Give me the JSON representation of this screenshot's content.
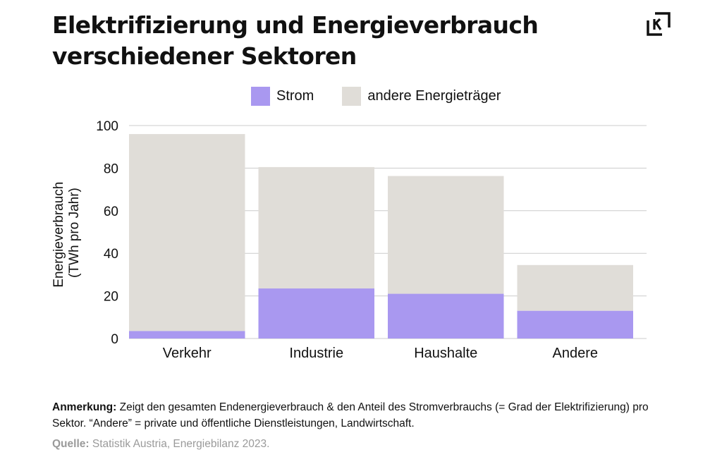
{
  "title": "Elektrifizierung und Energieverbrauch verschiedener Sektoren",
  "colors": {
    "strom": "#a998f0",
    "andere": "#e0ddd8",
    "grid": "#cccccc"
  },
  "chart_data": {
    "type": "bar",
    "stacked": true,
    "categories": [
      "Verkehr",
      "Industrie",
      "Haushalte",
      "Andere"
    ],
    "series": [
      {
        "name": "Strom",
        "values": [
          3.5,
          23.5,
          21,
          13
        ]
      },
      {
        "name": "andere Energieträger",
        "values": [
          92.5,
          57,
          55.3,
          21.5
        ]
      }
    ],
    "ylabel_line1": "Energieverbrauch",
    "ylabel_line2": "(TWh pro Jahr)",
    "ylim": [
      0,
      100
    ],
    "yticks": [
      "0",
      "20",
      "40",
      "60",
      "80",
      "100"
    ],
    "legend_position": "top"
  },
  "note": {
    "label": "Anmerkung:",
    "text": "Zeigt den gesamten Endenergieverbrauch & den Anteil des Stromverbrauchs (= Grad der Elektrifizierung) pro Sektor. “Andere” = private und öffentliche Dienstleistungen, Landwirtschaft."
  },
  "source": {
    "label": "Quelle:",
    "text": "Statistik Austria, Energiebilanz 2023."
  }
}
